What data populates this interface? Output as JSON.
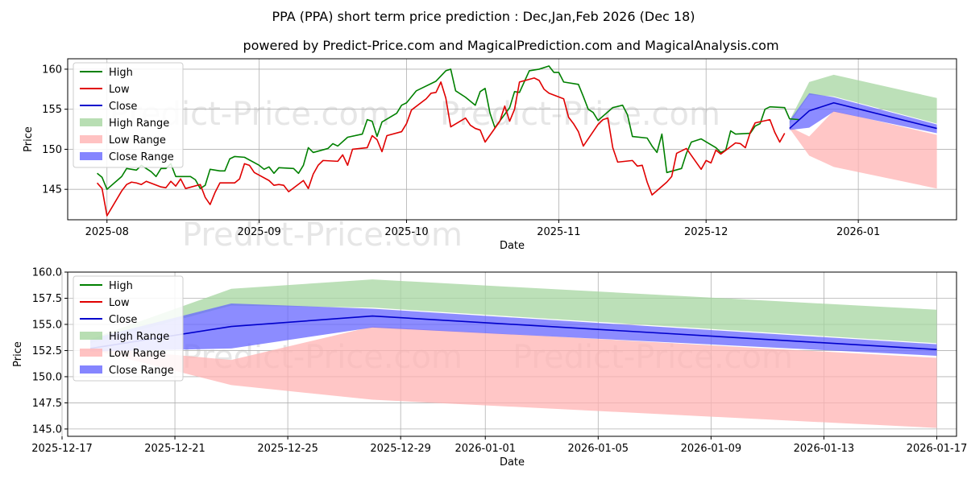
{
  "page": {
    "title": "PPA (PPA) short term price prediction : Dec,Jan,Feb 2026 (Dec 18)",
    "subtitle": "powered by Predict-Price.com and MagicalPrediction.com and MagicalAnalysis.com",
    "watermark": "Predict-Price.com"
  },
  "colors": {
    "high": "#008000",
    "low": "#e00000",
    "close": "#0000cc",
    "high_range": "#a6d6a0",
    "low_range": "#ffb3b3",
    "close_range": "#6666ff"
  },
  "chart_data": [
    {
      "type": "line",
      "title": "",
      "xlabel": "Date",
      "ylabel": "Price",
      "x_range": [
        -8,
        173
      ],
      "ylim": [
        141.2,
        161.3
      ],
      "grid": true,
      "legend": "top-left",
      "legend_entries": [
        "High",
        "Low",
        "Close",
        "High Range",
        "Low Range",
        "Close Range"
      ],
      "xticks": [
        {
          "pos": 0,
          "label": "2025-08"
        },
        {
          "pos": 31,
          "label": "2025-09"
        },
        {
          "pos": 61,
          "label": "2025-10"
        },
        {
          "pos": 92,
          "label": "2025-11"
        },
        {
          "pos": 122,
          "label": "2025-12"
        },
        {
          "pos": 153,
          "label": "2026-01"
        }
      ],
      "yticks": [
        145,
        150,
        155,
        160
      ],
      "high_series": [
        [
          -2,
          147.0
        ],
        [
          -1,
          146.5
        ],
        [
          0,
          145.0
        ],
        [
          3,
          146.6
        ],
        [
          4,
          147.6
        ],
        [
          5,
          147.5
        ],
        [
          6,
          147.4
        ],
        [
          7,
          148.0
        ],
        [
          8,
          147.6
        ],
        [
          9,
          147.2
        ],
        [
          10,
          146.6
        ],
        [
          11,
          147.6
        ],
        [
          12,
          147.6
        ],
        [
          13,
          148.2
        ],
        [
          14,
          146.6
        ],
        [
          17,
          146.6
        ],
        [
          18,
          146.2
        ],
        [
          19,
          145.1
        ],
        [
          20,
          145.5
        ],
        [
          21,
          147.5
        ],
        [
          23,
          147.3
        ],
        [
          24,
          147.3
        ],
        [
          25,
          148.8
        ],
        [
          26,
          149.1
        ],
        [
          28,
          149.0
        ],
        [
          31,
          148.0
        ],
        [
          32,
          147.5
        ],
        [
          33,
          147.8
        ],
        [
          34,
          147.0
        ],
        [
          35,
          147.7
        ],
        [
          38,
          147.6
        ],
        [
          39,
          147.0
        ],
        [
          40,
          148.0
        ],
        [
          41,
          150.2
        ],
        [
          42,
          149.6
        ],
        [
          45,
          150.1
        ],
        [
          46,
          150.7
        ],
        [
          47,
          150.4
        ],
        [
          49,
          151.5
        ],
        [
          52,
          151.9
        ],
        [
          53,
          153.7
        ],
        [
          54,
          153.5
        ],
        [
          55,
          151.6
        ],
        [
          56,
          153.4
        ],
        [
          59,
          154.5
        ],
        [
          60,
          155.5
        ],
        [
          61,
          155.8
        ],
        [
          63,
          157.3
        ],
        [
          64,
          157.6
        ],
        [
          67,
          158.5
        ],
        [
          69,
          159.8
        ],
        [
          70,
          160.0
        ],
        [
          71,
          157.3
        ],
        [
          73,
          156.5
        ],
        [
          75,
          155.5
        ],
        [
          76,
          157.2
        ],
        [
          77,
          157.6
        ],
        [
          78,
          154.5
        ],
        [
          79,
          152.7
        ],
        [
          82,
          155.2
        ],
        [
          83,
          157.2
        ],
        [
          84,
          157.1
        ],
        [
          86,
          159.8
        ],
        [
          88,
          160.0
        ],
        [
          90,
          160.4
        ],
        [
          91,
          159.6
        ],
        [
          92,
          159.6
        ],
        [
          93,
          158.4
        ],
        [
          96,
          158.1
        ],
        [
          97,
          156.6
        ],
        [
          98,
          155.0
        ],
        [
          99,
          154.6
        ],
        [
          100,
          153.6
        ],
        [
          103,
          155.2
        ],
        [
          105,
          155.5
        ],
        [
          106,
          154.3
        ],
        [
          107,
          151.6
        ],
        [
          110,
          151.4
        ],
        [
          111,
          150.4
        ],
        [
          112,
          149.6
        ],
        [
          113,
          151.9
        ],
        [
          114,
          147.1
        ],
        [
          117,
          147.6
        ],
        [
          118,
          149.5
        ],
        [
          119,
          150.9
        ],
        [
          121,
          151.3
        ],
        [
          124,
          150.2
        ],
        [
          125,
          149.6
        ],
        [
          126,
          149.9
        ],
        [
          127,
          152.3
        ],
        [
          128,
          151.9
        ],
        [
          131,
          152.0
        ],
        [
          132,
          152.9
        ],
        [
          133,
          153.2
        ],
        [
          134,
          155.0
        ],
        [
          135,
          155.3
        ],
        [
          138,
          155.2
        ],
        [
          139,
          153.8
        ],
        [
          141,
          153.7
        ]
      ],
      "low_series": [
        [
          -2,
          145.8
        ],
        [
          -1,
          145.1
        ],
        [
          0,
          141.7
        ],
        [
          3,
          144.8
        ],
        [
          4,
          145.6
        ],
        [
          5,
          145.9
        ],
        [
          6,
          145.8
        ],
        [
          7,
          145.6
        ],
        [
          8,
          146.0
        ],
        [
          11,
          145.3
        ],
        [
          12,
          145.2
        ],
        [
          13,
          146.0
        ],
        [
          14,
          145.4
        ],
        [
          15,
          146.3
        ],
        [
          16,
          145.1
        ],
        [
          19,
          145.6
        ],
        [
          20,
          144.0
        ],
        [
          21,
          143.1
        ],
        [
          22,
          144.6
        ],
        [
          23,
          145.8
        ],
        [
          26,
          145.8
        ],
        [
          27,
          146.3
        ],
        [
          28,
          148.2
        ],
        [
          29,
          148.0
        ],
        [
          30,
          147.1
        ],
        [
          33,
          146.1
        ],
        [
          34,
          145.5
        ],
        [
          35,
          145.6
        ],
        [
          36,
          145.5
        ],
        [
          37,
          144.7
        ],
        [
          40,
          146.1
        ],
        [
          41,
          145.1
        ],
        [
          42,
          146.9
        ],
        [
          43,
          148.0
        ],
        [
          44,
          148.6
        ],
        [
          47,
          148.5
        ],
        [
          48,
          149.3
        ],
        [
          49,
          148.0
        ],
        [
          50,
          150.0
        ],
        [
          53,
          150.2
        ],
        [
          54,
          151.7
        ],
        [
          55,
          151.2
        ],
        [
          56,
          149.7
        ],
        [
          57,
          151.7
        ],
        [
          60,
          152.2
        ],
        [
          61,
          153.2
        ],
        [
          62,
          154.9
        ],
        [
          65,
          156.3
        ],
        [
          66,
          157.0
        ],
        [
          67,
          157.1
        ],
        [
          68,
          158.4
        ],
        [
          69,
          156.4
        ],
        [
          70,
          152.8
        ],
        [
          73,
          153.9
        ],
        [
          74,
          153.0
        ],
        [
          75,
          152.6
        ],
        [
          76,
          152.4
        ],
        [
          77,
          150.9
        ],
        [
          80,
          153.5
        ],
        [
          81,
          155.4
        ],
        [
          82,
          153.5
        ],
        [
          83,
          155.0
        ],
        [
          84,
          158.4
        ],
        [
          87,
          158.9
        ],
        [
          88,
          158.6
        ],
        [
          89,
          157.5
        ],
        [
          90,
          157.0
        ],
        [
          93,
          156.3
        ],
        [
          94,
          154.0
        ],
        [
          95,
          153.2
        ],
        [
          96,
          152.2
        ],
        [
          97,
          150.4
        ],
        [
          100,
          153.1
        ],
        [
          101,
          153.7
        ],
        [
          102,
          153.9
        ],
        [
          103,
          150.2
        ],
        [
          104,
          148.4
        ],
        [
          107,
          148.6
        ],
        [
          108,
          147.9
        ],
        [
          109,
          148.0
        ],
        [
          110,
          145.9
        ],
        [
          111,
          144.3
        ],
        [
          114,
          145.9
        ],
        [
          115,
          146.6
        ],
        [
          116,
          149.5
        ],
        [
          118,
          150.1
        ],
        [
          121,
          147.5
        ],
        [
          122,
          148.6
        ],
        [
          123,
          148.3
        ],
        [
          124,
          149.9
        ],
        [
          125,
          149.4
        ],
        [
          128,
          150.8
        ],
        [
          129,
          150.7
        ],
        [
          130,
          150.2
        ],
        [
          131,
          152.1
        ],
        [
          132,
          153.3
        ],
        [
          135,
          153.7
        ],
        [
          136,
          152.1
        ],
        [
          137,
          150.9
        ],
        [
          138,
          152.0
        ]
      ],
      "close_series": [
        [
          139,
          152.6
        ],
        [
          143,
          154.8
        ],
        [
          148,
          155.8
        ],
        [
          169,
          152.6
        ]
      ],
      "high_range_band": {
        "x": [
          139,
          143,
          148,
          169
        ],
        "upper": [
          153.6,
          158.4,
          159.3,
          156.4
        ],
        "lower": [
          153.2,
          156.8,
          156.6,
          153.2
        ]
      },
      "low_range_band": {
        "x": [
          139,
          143,
          148,
          169
        ],
        "upper": [
          152.8,
          151.6,
          154.8,
          151.8
        ],
        "lower": [
          152.6,
          149.2,
          147.8,
          145.1
        ]
      },
      "close_range_band": {
        "x": [
          139,
          143,
          148,
          169
        ],
        "upper": [
          153.6,
          157.0,
          156.5,
          153.1
        ],
        "lower": [
          152.4,
          152.7,
          154.7,
          152.0
        ]
      }
    },
    {
      "type": "line",
      "title": "",
      "xlabel": "Date",
      "ylabel": "Price",
      "x_range": [
        -0.8,
        30.7
      ],
      "ylim": [
        144.3,
        160.0
      ],
      "grid": true,
      "legend": "top-left",
      "legend_entries": [
        "High",
        "Low",
        "Close",
        "High Range",
        "Low Range",
        "Close Range"
      ],
      "xticks": [
        {
          "pos": -1,
          "label": "2025-12-17"
        },
        {
          "pos": 3,
          "label": "2025-12-21"
        },
        {
          "pos": 7,
          "label": "2025-12-25"
        },
        {
          "pos": 11,
          "label": "2025-12-29"
        },
        {
          "pos": 14,
          "label": "2026-01-01"
        },
        {
          "pos": 18,
          "label": "2026-01-05"
        },
        {
          "pos": 22,
          "label": "2026-01-09"
        },
        {
          "pos": 26,
          "label": "2026-01-13"
        },
        {
          "pos": 30,
          "label": "2026-01-17"
        }
      ],
      "yticks": [
        145.0,
        147.5,
        150.0,
        152.5,
        155.0,
        157.5,
        160.0
      ],
      "close_series": [
        [
          0,
          152.7
        ],
        [
          5,
          154.8
        ],
        [
          10,
          155.8
        ],
        [
          30,
          152.6
        ]
      ],
      "high_range_band": {
        "x": [
          0,
          5,
          10,
          30
        ],
        "upper": [
          153.6,
          158.4,
          159.3,
          156.4
        ],
        "lower": [
          153.2,
          156.8,
          156.6,
          153.2
        ]
      },
      "low_range_band": {
        "x": [
          0,
          5,
          10,
          30
        ],
        "upper": [
          152.8,
          151.6,
          154.8,
          151.8
        ],
        "lower": [
          152.6,
          149.2,
          147.8,
          145.1
        ]
      },
      "close_range_band": {
        "x": [
          0,
          5,
          10,
          30
        ],
        "upper": [
          153.6,
          157.0,
          156.5,
          153.1
        ],
        "lower": [
          152.4,
          152.7,
          154.7,
          152.0
        ]
      }
    }
  ]
}
